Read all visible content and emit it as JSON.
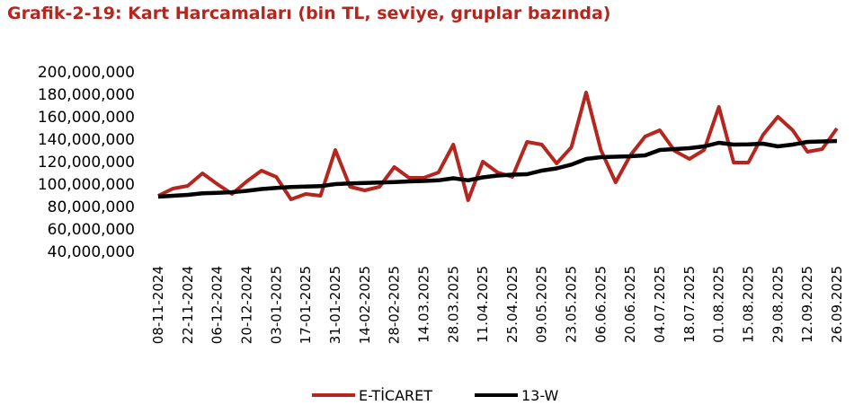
{
  "chart_data": {
    "type": "line",
    "title": "Grafik-2-19: Kart Harcamaları (bin TL, seviye, gruplar bazında)",
    "xlabel": "",
    "ylabel": "",
    "ylim": [
      40000000,
      200000000
    ],
    "yticks": [
      "200,000,000",
      "180,000,000",
      "160,000,000",
      "140,000,000",
      "120,000,000",
      "100,000,000",
      "80,000,000",
      "60,000,000",
      "40,000,000"
    ],
    "xtick_labels": [
      "08-11-2024",
      "22-11-2024",
      "06-12-2024",
      "20-12-2024",
      "03-01-2025",
      "17-01-2025",
      "31-01-2025",
      "14-02-2025",
      "28-02-2025",
      "14.03.2025",
      "28.03.2025",
      "11.04.2025",
      "25.04.2025",
      "09.05.2025",
      "23.05.2025",
      "06.06.2025",
      "20.06.2025",
      "04.07.2025",
      "18.07.2025",
      "01.08.2025",
      "15.08.2025",
      "29.08.2025",
      "12.09.2025",
      "26.09.2025"
    ],
    "x_frequency": "weekly",
    "grid": false,
    "legend": "bottom",
    "series": [
      {
        "name": "E-TİCARET",
        "color": "#b5261e",
        "values": [
          89.6,
          96,
          98.4,
          109.6,
          100,
          91.2,
          102.4,
          112,
          106.4,
          86.4,
          91.2,
          89.6,
          130.4,
          97.6,
          94.4,
          97.6,
          115.2,
          105.6,
          105.6,
          110.4,
          135.2,
          85.6,
          120,
          110.4,
          106.4,
          137.6,
          135.2,
          118.4,
          132.8,
          181.6,
          130.4,
          101.6,
          125.6,
          142.4,
          148,
          129.6,
          122.4,
          130.4,
          168.8,
          119.2,
          119.2,
          144,
          160,
          148,
          128.8,
          131.2,
          149.6
        ]
      },
      {
        "name": "13-W",
        "color": "#000000",
        "values": [
          88.8,
          89.6,
          90.4,
          91.8,
          92.2,
          92.8,
          94,
          95.6,
          96.6,
          97.4,
          97.8,
          98.2,
          100,
          100.6,
          101,
          101.4,
          101.8,
          102.4,
          102.8,
          103.4,
          105.2,
          103.4,
          106,
          107.6,
          108.4,
          108.8,
          112,
          114,
          117.4,
          122.4,
          124,
          124.4,
          124.8,
          125.6,
          130.4,
          131.2,
          132,
          133.6,
          136.8,
          135.2,
          135.4,
          136,
          133.6,
          135.2,
          137.6,
          138,
          138.4
        ]
      }
    ],
    "value_unit_multiplier": 1000000
  }
}
